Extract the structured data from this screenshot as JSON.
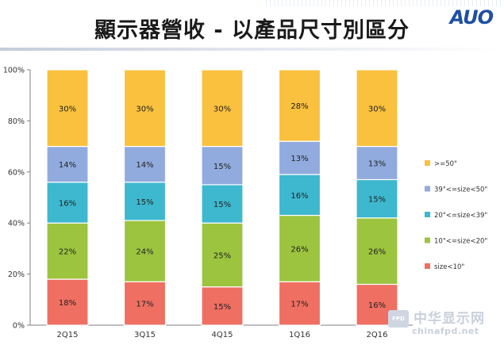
{
  "header": {
    "title": "顯示器營收 - 以產品尺寸別區分",
    "logo": "AUO"
  },
  "watermark": {
    "badge": "FPD",
    "name": "中华显示网",
    "url": "chinafpd.net"
  },
  "colors": {
    "size_lt10": "#ef6f62",
    "size_10_20": "#9cc43f",
    "size_20_39": "#3db8cf",
    "size_39_50": "#92abde",
    "size_ge50": "#f9c13e"
  },
  "chart_data": {
    "type": "bar",
    "stacked": true,
    "categories": [
      "2Q15",
      "3Q15",
      "4Q15",
      "1Q16",
      "2Q16"
    ],
    "series": [
      {
        "name": "size<10\"",
        "values": [
          18,
          17,
          15,
          17,
          16
        ],
        "color": "#ef6f62"
      },
      {
        "name": "10\"<=size<20\"",
        "values": [
          22,
          24,
          25,
          26,
          26
        ],
        "color": "#9cc43f"
      },
      {
        "name": "20\"<=size<39\"",
        "values": [
          16,
          15,
          15,
          16,
          15
        ],
        "color": "#3db8cf"
      },
      {
        "name": "39\"<=size<50\"",
        "values": [
          14,
          14,
          15,
          13,
          13
        ],
        "color": "#92abde"
      },
      {
        "name": ">=50\"",
        "values": [
          30,
          30,
          30,
          28,
          30
        ],
        "color": "#f9c13e"
      }
    ],
    "value_labels": [
      [
        "18%",
        "17%",
        "15%",
        "17%",
        "16%"
      ],
      [
        "22%",
        "24%",
        "25%",
        "26%",
        "26%"
      ],
      [
        "16%",
        "15%",
        "15%",
        "16%",
        "15%"
      ],
      [
        "14%",
        "14%",
        "15%",
        "13%",
        "13%"
      ],
      [
        "30%",
        "30%",
        "30%",
        "28%",
        "30%"
      ]
    ],
    "y_ticks": [
      0,
      20,
      40,
      60,
      80,
      100
    ],
    "y_tick_labels": [
      "0%",
      "20%",
      "40%",
      "60%",
      "80%",
      "100%"
    ],
    "ylim": [
      0,
      100
    ],
    "legend_position": "right",
    "legend_order": [
      ">=50\"",
      "39\"<=size<50\"",
      "20\"<=size<39\"",
      "10\"<=size<20\"",
      "size<10\""
    ],
    "legend_colors": [
      "#f9c13e",
      "#92abde",
      "#3db8cf",
      "#9cc43f",
      "#ef6f62"
    ],
    "grid": false
  }
}
